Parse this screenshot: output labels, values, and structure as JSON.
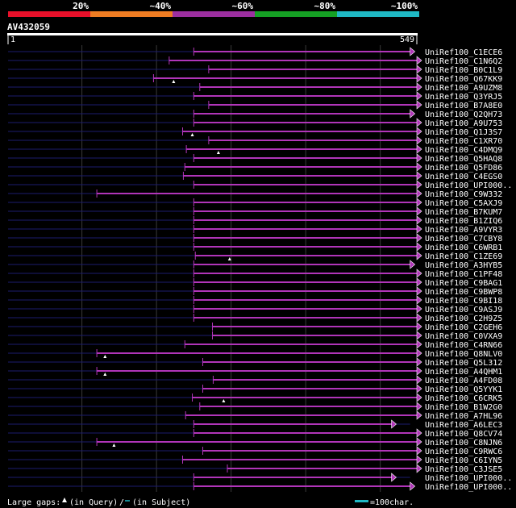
{
  "identity_scale": {
    "labels": [
      "20%",
      "~40%",
      "~60%",
      "~80%",
      "~100%"
    ],
    "colors": [
      "#e8102a",
      "#ee7c22",
      "#9c2fa0",
      "#15a024",
      "#1fb8c4"
    ]
  },
  "query": {
    "id": "AV432059",
    "start": "1",
    "end": "549",
    "length": 549
  },
  "bar_color": "#b135b9",
  "hits": [
    {
      "name": "UniRef100_C1ECE6",
      "start": 250,
      "end": 540,
      "arrow_gap": true,
      "thin_to": 0
    },
    {
      "name": "UniRef100_C1N6Q2",
      "start": 217,
      "end": 549,
      "arrow_gap": false,
      "thin_to": 0
    },
    {
      "name": "UniRef100_B0C1L9",
      "start": 270,
      "end": 549,
      "arrow_gap": false,
      "thin_to": 0
    },
    {
      "name": "UniRef100_Q67KK9",
      "start": 196,
      "end": 549,
      "arrow_gap": false,
      "thin_to": 0,
      "query_gap": 223
    },
    {
      "name": "UniRef100_A9UZM8",
      "start": 258,
      "end": 549,
      "arrow_gap": false,
      "thin_to": 0
    },
    {
      "name": "UniRef100_Q3YRJ5",
      "start": 250,
      "end": 549,
      "arrow_gap": false,
      "thin_to": 0
    },
    {
      "name": "UniRef100_B7A8E0",
      "start": 270,
      "end": 549,
      "arrow_gap": false,
      "thin_to": 0
    },
    {
      "name": "UniRef100_Q2QH73",
      "start": 250,
      "end": 540,
      "arrow_gap": true,
      "thin_to": 0
    },
    {
      "name": "UniRef100_A9U753",
      "start": 250,
      "end": 549,
      "arrow_gap": false,
      "thin_to": 0
    },
    {
      "name": "UniRef100_Q1J3S7",
      "start": 235,
      "end": 549,
      "arrow_gap": false,
      "thin_to": 0,
      "query_gap": 248
    },
    {
      "name": "UniRef100_C1XR70",
      "start": 270,
      "end": 549,
      "arrow_gap": false,
      "thin_to": 0
    },
    {
      "name": "UniRef100_C4DMQ9",
      "start": 240,
      "end": 549,
      "arrow_gap": false,
      "thin_to": 0,
      "query_gap": 283
    },
    {
      "name": "UniRef100_Q5HAQ8",
      "start": 250,
      "end": 549,
      "arrow_gap": false,
      "thin_to": 0
    },
    {
      "name": "UniRef100_Q5FD86",
      "start": 238,
      "end": 549,
      "arrow_gap": false,
      "thin_to": 0
    },
    {
      "name": "UniRef100_C4EGS0",
      "start": 236,
      "end": 549,
      "arrow_gap": false,
      "thin_to": 0
    },
    {
      "name": "UniRef100_UPI000..",
      "start": 250,
      "end": 549,
      "arrow_gap": false,
      "thin_to": 0
    },
    {
      "name": "UniRef100_C9W332",
      "start": 120,
      "end": 549,
      "arrow_gap": false,
      "thin_to": 0
    },
    {
      "name": "UniRef100_C5AXJ9",
      "start": 250,
      "end": 549,
      "arrow_gap": false,
      "thin_to": 0
    },
    {
      "name": "UniRef100_B7KUM7",
      "start": 250,
      "end": 549,
      "arrow_gap": false,
      "thin_to": 0
    },
    {
      "name": "UniRef100_B1ZIQ6",
      "start": 250,
      "end": 549,
      "arrow_gap": false,
      "thin_to": 0
    },
    {
      "name": "UniRef100_A9VYR3",
      "start": 250,
      "end": 549,
      "arrow_gap": false,
      "thin_to": 0
    },
    {
      "name": "UniRef100_C7CBY8",
      "start": 250,
      "end": 549,
      "arrow_gap": false,
      "thin_to": 0
    },
    {
      "name": "UniRef100_C6WRB1",
      "start": 250,
      "end": 549,
      "arrow_gap": false,
      "thin_to": 0
    },
    {
      "name": "UniRef100_C1ZE69",
      "start": 252,
      "end": 549,
      "arrow_gap": false,
      "thin_to": 0,
      "query_gap": 298
    },
    {
      "name": "UniRef100_A3HYB5",
      "start": 250,
      "end": 540,
      "arrow_gap": true,
      "thin_to": 0
    },
    {
      "name": "UniRef100_C1PF48",
      "start": 250,
      "end": 549,
      "arrow_gap": false,
      "thin_to": 0
    },
    {
      "name": "UniRef100_C9BAG1",
      "start": 250,
      "end": 549,
      "arrow_gap": false,
      "thin_to": 0
    },
    {
      "name": "UniRef100_C9BWP8",
      "start": 250,
      "end": 549,
      "arrow_gap": false,
      "thin_to": 0
    },
    {
      "name": "UniRef100_C9BI18",
      "start": 250,
      "end": 549,
      "arrow_gap": false,
      "thin_to": 0
    },
    {
      "name": "UniRef100_C9ASJ9",
      "start": 250,
      "end": 549,
      "arrow_gap": false,
      "thin_to": 0
    },
    {
      "name": "UniRef100_C2H9Z5",
      "start": 250,
      "end": 549,
      "arrow_gap": false,
      "thin_to": 0
    },
    {
      "name": "UniRef100_C2GEH6",
      "start": 275,
      "end": 549,
      "arrow_gap": false,
      "thin_to": 0
    },
    {
      "name": "UniRef100_C0VXA9",
      "start": 275,
      "end": 549,
      "arrow_gap": false,
      "thin_to": 0
    },
    {
      "name": "UniRef100_C4RN66",
      "start": 238,
      "end": 549,
      "arrow_gap": false,
      "thin_to": 0
    },
    {
      "name": "UniRef100_Q8NLV0",
      "start": 120,
      "end": 549,
      "arrow_gap": false,
      "thin_to": 0,
      "query_gap": 131
    },
    {
      "name": "UniRef100_Q5L312",
      "start": 262,
      "end": 549,
      "arrow_gap": false,
      "thin_to": 0
    },
    {
      "name": "UniRef100_A4QHM1",
      "start": 120,
      "end": 549,
      "arrow_gap": false,
      "thin_to": 0,
      "query_gap": 131
    },
    {
      "name": "UniRef100_A4FD08",
      "start": 276,
      "end": 549,
      "arrow_gap": false,
      "thin_to": 0
    },
    {
      "name": "UniRef100_Q5YYK1",
      "start": 262,
      "end": 549,
      "arrow_gap": false,
      "thin_to": 0
    },
    {
      "name": "UniRef100_C6CRK5",
      "start": 248,
      "end": 549,
      "arrow_gap": false,
      "thin_to": 0,
      "query_gap": 290
    },
    {
      "name": "UniRef100_B1W2G0",
      "start": 258,
      "end": 549,
      "arrow_gap": false,
      "thin_to": 0
    },
    {
      "name": "UniRef100_A7HL96",
      "start": 239,
      "end": 549,
      "arrow_gap": false,
      "thin_to": 0
    },
    {
      "name": "UniRef100_A6LEC3",
      "start": 250,
      "end": 515,
      "arrow_gap": true,
      "thin_to": 540
    },
    {
      "name": "UniRef100_Q8CV74",
      "start": 250,
      "end": 549,
      "arrow_gap": false,
      "thin_to": 0
    },
    {
      "name": "UniRef100_C8NJN6",
      "start": 120,
      "end": 549,
      "arrow_gap": false,
      "thin_to": 0,
      "query_gap": 143
    },
    {
      "name": "UniRef100_C9RWC6",
      "start": 262,
      "end": 549,
      "arrow_gap": false,
      "thin_to": 0
    },
    {
      "name": "UniRef100_C6IYN5",
      "start": 235,
      "end": 549,
      "arrow_gap": false,
      "thin_to": 0
    },
    {
      "name": "UniRef100_C3JSE5",
      "start": 295,
      "end": 549,
      "arrow_gap": false,
      "thin_to": 0
    },
    {
      "name": "UniRef100_UPI000..",
      "start": 250,
      "end": 515,
      "arrow_gap": true,
      "thin_to": 540
    },
    {
      "name": "UniRef100_UPI000..",
      "start": 250,
      "end": 540,
      "arrow_gap": true,
      "thin_to": 0
    }
  ],
  "legend": {
    "large_gaps_label": "Large gaps:",
    "query_gap_text": "(in Query)",
    "subject_gap_text": "(in Subject)",
    "scale_text": "=100char.",
    "scale_color": "#1fb8c4"
  }
}
